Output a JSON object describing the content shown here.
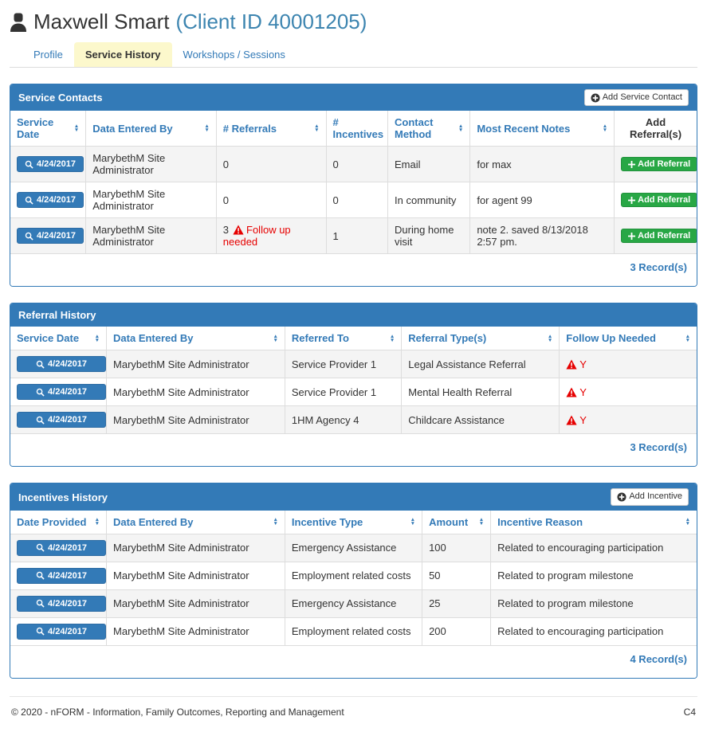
{
  "header": {
    "title": "Maxwell Smart",
    "client_id": "(Client ID 40001205)"
  },
  "tabs": [
    {
      "label": "Profile",
      "active": false
    },
    {
      "label": "Service History",
      "active": true
    },
    {
      "label": "Workshops / Sessions",
      "active": false
    }
  ],
  "colors": {
    "accent_blue": "#337ab7",
    "success_green": "#28a745",
    "warning_red": "#e60000",
    "active_tab_yellow": "#fcf8cc",
    "stripe_gray": "#f4f4f4"
  },
  "tables": {
    "service_contacts": {
      "title": "Service Contacts",
      "add_button_label": "Add Service Contact",
      "columns": [
        {
          "label": "Service Date",
          "sort": true,
          "render": "dateBtn",
          "width": "11%"
        },
        {
          "label": "Data Entered By",
          "sort": true,
          "render": "text",
          "width": "19%"
        },
        {
          "label": "# Referrals",
          "sort": true,
          "render": "text",
          "width": "16%"
        },
        {
          "label": "# Incentives",
          "sort": true,
          "render": "text",
          "width": "9%"
        },
        {
          "label": "Contact Method",
          "sort": true,
          "render": "text",
          "width": "12%"
        },
        {
          "label": "Most Recent Notes",
          "sort": true,
          "render": "text",
          "width": "21%"
        },
        {
          "label": "Add Referral(s)",
          "sort": false,
          "render": "greenBtn",
          "width": "12%",
          "dark": true
        }
      ],
      "rows": [
        [
          "4/24/2017",
          "MarybethM Site Administrator",
          {
            "t": "0"
          },
          "0",
          "Email",
          "for max",
          "Add Referral"
        ],
        [
          "4/24/2017",
          "MarybethM Site Administrator",
          {
            "t": "0"
          },
          "0",
          "In community",
          "for agent 99",
          "Add Referral"
        ],
        [
          "4/24/2017",
          "MarybethM Site Administrator",
          {
            "t": "3",
            "warn": "Follow up needed"
          },
          "1",
          "During home visit",
          "note 2. saved 8/13/2018 2:57 pm.",
          "Add Referral"
        ]
      ],
      "record_count": "3 Record(s)"
    },
    "referral_history": {
      "title": "Referral History",
      "columns": [
        {
          "label": "Service Date",
          "sort": true,
          "render": "dateBtn",
          "width": "14%"
        },
        {
          "label": "Data Entered By",
          "sort": true,
          "render": "text",
          "width": "26%"
        },
        {
          "label": "Referred To",
          "sort": true,
          "render": "text",
          "width": "17%"
        },
        {
          "label": "Referral Type(s)",
          "sort": true,
          "render": "text",
          "width": "23%"
        },
        {
          "label": "Follow Up Needed",
          "sort": true,
          "render": "text",
          "width": "20%"
        }
      ],
      "rows": [
        [
          "4/24/2017",
          "MarybethM Site Administrator",
          "Service Provider 1",
          "Legal Assistance Referral",
          {
            "warn": "Y"
          }
        ],
        [
          "4/24/2017",
          "MarybethM Site Administrator",
          "Service Provider 1",
          "Mental Health Referral",
          {
            "warn": "Y"
          }
        ],
        [
          "4/24/2017",
          "MarybethM Site Administrator",
          "1HM Agency 4",
          "Childcare Assistance",
          {
            "warn": "Y"
          }
        ]
      ],
      "record_count": "3 Record(s)"
    },
    "incentives_history": {
      "title": "Incentives History",
      "add_button_label": "Add Incentive",
      "columns": [
        {
          "label": "Date Provided",
          "sort": true,
          "render": "dateBtn",
          "width": "14%"
        },
        {
          "label": "Data Entered By",
          "sort": true,
          "render": "text",
          "width": "26%"
        },
        {
          "label": "Incentive Type",
          "sort": true,
          "render": "text",
          "width": "20%"
        },
        {
          "label": "Amount",
          "sort": true,
          "render": "text",
          "width": "10%"
        },
        {
          "label": "Incentive Reason",
          "sort": true,
          "render": "text",
          "width": "30%"
        }
      ],
      "rows": [
        [
          "4/24/2017",
          "MarybethM Site Administrator",
          "Emergency Assistance",
          "100",
          "Related to encouraging participation"
        ],
        [
          "4/24/2017",
          "MarybethM Site Administrator",
          "Employment related costs",
          "50",
          "Related to program milestone"
        ],
        [
          "4/24/2017",
          "MarybethM Site Administrator",
          "Emergency Assistance",
          "25",
          "Related to program milestone"
        ],
        [
          "4/24/2017",
          "MarybethM Site Administrator",
          "Employment related costs",
          "200",
          "Related to encouraging participation"
        ]
      ],
      "record_count": "4 Record(s)"
    }
  },
  "footer": {
    "copyright": "© 2020 - nFORM - Information, Family Outcomes, Reporting and Management",
    "page_code": "C4"
  }
}
